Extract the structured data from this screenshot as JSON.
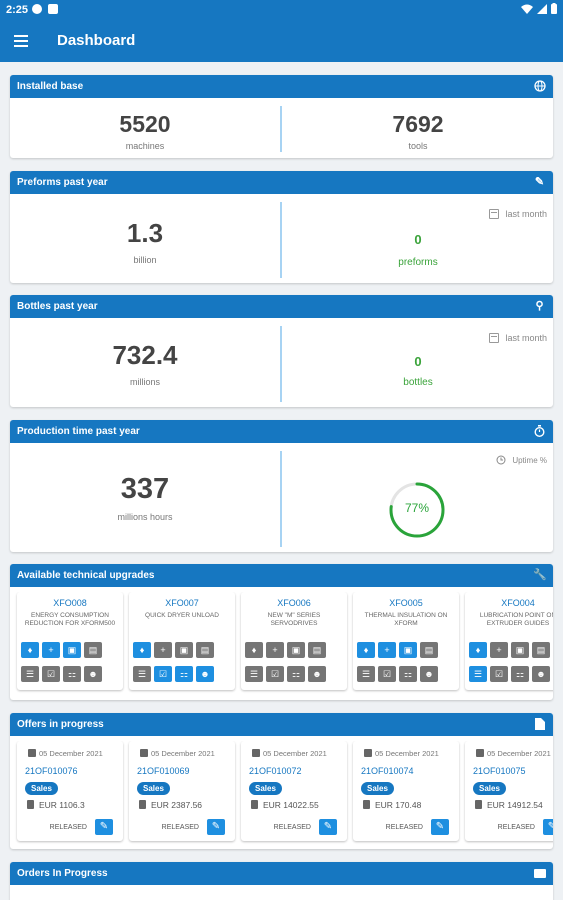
{
  "status_bar": {
    "time": "2:25"
  },
  "app_bar": {
    "title": "Dashboard"
  },
  "installed_base": {
    "title": "Installed base",
    "machines_value": "5520",
    "machines_label": "machines",
    "tools_value": "7692",
    "tools_label": "tools"
  },
  "preforms": {
    "title": "Preforms past year",
    "value": "1.3",
    "unit": "billion",
    "period": "last month",
    "month_value": "0",
    "month_label": "preforms"
  },
  "bottles": {
    "title": "Bottles past year",
    "value": "732.4",
    "unit": "millions",
    "period": "last month",
    "month_value": "0",
    "month_label": "bottles"
  },
  "production": {
    "title": "Production time past year",
    "value": "337",
    "unit": "millions  hours",
    "uptime_label": "Uptime %",
    "uptime_value": "77%",
    "uptime_fraction": 0.77,
    "accent": "#2aa43a"
  },
  "upgrades": {
    "title": "Available technical upgrades",
    "items": [
      {
        "code": "XFO008",
        "desc": "ENERGY CONSUMPTION REDUCTION FOR XFORM500"
      },
      {
        "code": "XFO007",
        "desc": "QUICK DRYER UNLOAD"
      },
      {
        "code": "XFO006",
        "desc": "NEW \"M\" SERIES SERVODRIVES"
      },
      {
        "code": "XFO005",
        "desc": "THERMAL INSULATION ON XFORM"
      },
      {
        "code": "XFO004",
        "desc": "LUBRICATION POINT ON EXTRUDER GUIDES"
      }
    ]
  },
  "offers": {
    "title": "Offers in progress",
    "items": [
      {
        "date": "05 December 2021",
        "code": "21OF010076",
        "tag": "Sales",
        "amount": "EUR 1106.3",
        "status": "RELEASED"
      },
      {
        "date": "05 December 2021",
        "code": "21OF010069",
        "tag": "Sales",
        "amount": "EUR 2387.56",
        "status": "RELEASED"
      },
      {
        "date": "05 December 2021",
        "code": "21OF010072",
        "tag": "Sales",
        "amount": "EUR 14022.55",
        "status": "RELEASED"
      },
      {
        "date": "05 December 2021",
        "code": "21OF010074",
        "tag": "Sales",
        "amount": "EUR 170.48",
        "status": "RELEASED"
      },
      {
        "date": "05 December 2021",
        "code": "21OF010075",
        "tag": "Sales",
        "amount": "EUR 14912.54",
        "status": "RELEASED"
      }
    ]
  },
  "orders": {
    "title": "Orders In Progress"
  },
  "colors": {
    "primary": "#1677c1",
    "accent_blue": "#1e8fe0",
    "icon_gray": "#757575"
  }
}
